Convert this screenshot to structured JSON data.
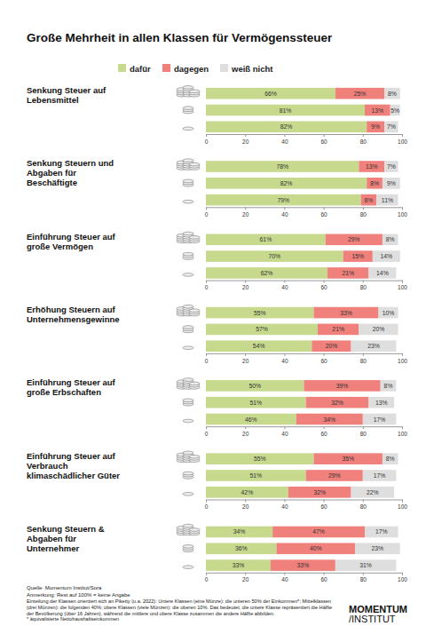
{
  "title": "Große Mehrheit in allen Klassen für Vermögenssteuer",
  "notes": [
    "Quelle: Momentum Institut/Sora",
    "Anmerkung: Rest auf 100% = keine Angabe",
    "Einteilung der Klassen orientiert sich an Piketty (u.a. 2022): Untere Klassen (eine Münze): die unteren 50% der Einkommen*; Mittelklassen (drei Münzen): die folgenden 40%; obere Klassen (viele Münzen): die oberen 10%. Das bedeutet, die untere Klasse repräsentiert die Hälfte der Bevölkerung (über 16 Jahren), während die mittlere und obere Klasse zusammen die andere Hälfte abbilden.",
    "* äquivalisierte Nettohaushaltseinkommen"
  ],
  "logo": [
    "MOMENTUM",
    "/INSTITUT"
  ],
  "chart_data": [
    {
      "type": "bar",
      "title": "Senkung Steuer auf Lebensmittel",
      "orientation": "horizontal",
      "stacked": true,
      "data_labels": true,
      "legend": "top",
      "categories": [
        null,
        null,
        null
      ],
      "xlim": [
        0,
        100
      ],
      "xticks": [
        0,
        20,
        40,
        60,
        80,
        100
      ],
      "series": [
        {
          "name": "dafür",
          "color": "#c6d98d",
          "values": [
            66,
            81,
            82
          ],
          "value_labels": [
            "66%",
            "81%",
            "82%"
          ]
        },
        {
          "name": "dagegen",
          "color": "#ef807b",
          "values": [
            25,
            13,
            9
          ],
          "value_labels": [
            "25%",
            "13%",
            "9%"
          ]
        },
        {
          "name": "weiß nicht",
          "color": "#dedede",
          "values": [
            8,
            5,
            7
          ],
          "value_labels": [
            "8%",
            "5%",
            "7%"
          ]
        }
      ]
    },
    {
      "type": "bar",
      "title": "Senkung Steuern und Abgaben für Beschäftigte",
      "orientation": "horizontal",
      "stacked": true,
      "data_labels": true,
      "categories": [
        null,
        null,
        null
      ],
      "xlim": [
        0,
        100
      ],
      "xticks": [
        0,
        20,
        40,
        60,
        80,
        100
      ],
      "series": [
        {
          "name": "dafür",
          "color": "#c6d98d",
          "values": [
            78,
            82,
            79
          ],
          "value_labels": [
            "78%",
            "82%",
            "79%"
          ]
        },
        {
          "name": "dagegen",
          "color": "#ef807b",
          "values": [
            13,
            8,
            8
          ],
          "value_labels": [
            "13%",
            "8%",
            "8%"
          ]
        },
        {
          "name": "weiß nicht",
          "color": "#dedede",
          "values": [
            7,
            9,
            11
          ],
          "value_labels": [
            "7%",
            "9%",
            "11%"
          ]
        }
      ]
    },
    {
      "type": "bar",
      "title": "Einführung Steuer auf große Vermögen",
      "orientation": "horizontal",
      "stacked": true,
      "data_labels": true,
      "categories": [
        null,
        null,
        null
      ],
      "xlim": [
        0,
        100
      ],
      "xticks": [
        0,
        20,
        40,
        60,
        80,
        100
      ],
      "series": [
        {
          "name": "dafür",
          "color": "#c6d98d",
          "values": [
            61,
            70,
            62
          ],
          "value_labels": [
            "61%",
            "70%",
            "62%"
          ]
        },
        {
          "name": "dagegen",
          "color": "#ef807b",
          "values": [
            29,
            15,
            21
          ],
          "value_labels": [
            "29%",
            "15%",
            "21%"
          ]
        },
        {
          "name": "weiß nicht",
          "color": "#dedede",
          "values": [
            8,
            14,
            14
          ],
          "value_labels": [
            "8%",
            "14%",
            "14%"
          ]
        }
      ]
    },
    {
      "type": "bar",
      "title": "Erhöhung Steuern auf Unternehmensgewinne",
      "orientation": "horizontal",
      "stacked": true,
      "data_labels": true,
      "categories": [
        null,
        null,
        null
      ],
      "xlim": [
        0,
        100
      ],
      "xticks": [
        0,
        20,
        40,
        60,
        80,
        100
      ],
      "series": [
        {
          "name": "dafür",
          "color": "#c6d98d",
          "values": [
            55,
            57,
            54
          ],
          "value_labels": [
            "55%",
            "57%",
            "54%"
          ]
        },
        {
          "name": "dagegen",
          "color": "#ef807b",
          "values": [
            33,
            21,
            20
          ],
          "value_labels": [
            "33%",
            "21%",
            "20%"
          ]
        },
        {
          "name": "weiß nicht",
          "color": "#dedede",
          "values": [
            10,
            20,
            23
          ],
          "value_labels": [
            "10%",
            "20%",
            "23%"
          ]
        }
      ]
    },
    {
      "type": "bar",
      "title": "Einführung Steuer auf große Erbschaften",
      "orientation": "horizontal",
      "stacked": true,
      "data_labels": true,
      "categories": [
        null,
        null,
        null
      ],
      "xlim": [
        0,
        100
      ],
      "xticks": [
        0,
        20,
        40,
        60,
        80,
        100
      ],
      "series": [
        {
          "name": "dafür",
          "color": "#c6d98d",
          "values": [
            50,
            51,
            46
          ],
          "value_labels": [
            "50%",
            "51%",
            "46%"
          ]
        },
        {
          "name": "dagegen",
          "color": "#ef807b",
          "values": [
            39,
            32,
            34
          ],
          "value_labels": [
            "39%",
            "32%",
            "34%"
          ]
        },
        {
          "name": "weiß nicht",
          "color": "#dedede",
          "values": [
            8,
            13,
            17
          ],
          "value_labels": [
            "8%",
            "13%",
            "17%"
          ]
        }
      ]
    },
    {
      "type": "bar",
      "title": "Einführung Steuer auf Verbrauch klimaschädlicher Güter",
      "orientation": "horizontal",
      "stacked": true,
      "data_labels": true,
      "categories": [
        null,
        null,
        null
      ],
      "xlim": [
        0,
        100
      ],
      "xticks": [
        0,
        20,
        40,
        60,
        80,
        100
      ],
      "series": [
        {
          "name": "dafür",
          "color": "#c6d98d",
          "values": [
            55,
            51,
            42
          ],
          "value_labels": [
            "55%",
            "51%",
            "42%"
          ]
        },
        {
          "name": "dagegen",
          "color": "#ef807b",
          "values": [
            35,
            29,
            32
          ],
          "value_labels": [
            "35%",
            "29%",
            "32%"
          ]
        },
        {
          "name": "weiß nicht",
          "color": "#dedede",
          "values": [
            8,
            17,
            22
          ],
          "value_labels": [
            "8%",
            "17%",
            "22%"
          ]
        }
      ]
    },
    {
      "type": "bar",
      "title": "Senkung Steuern & Abgaben für Unternehmer",
      "orientation": "horizontal",
      "stacked": true,
      "data_labels": true,
      "categories": [
        null,
        null,
        null
      ],
      "xlim": [
        0,
        100
      ],
      "xticks": [
        0,
        20,
        40,
        60,
        80,
        100
      ],
      "series": [
        {
          "name": "dafür",
          "color": "#c6d98d",
          "values": [
            34,
            36,
            33
          ],
          "value_labels": [
            "34%",
            "36%",
            "33%"
          ]
        },
        {
          "name": "dagegen",
          "color": "#ef807b",
          "values": [
            47,
            40,
            33
          ],
          "value_labels": [
            "47%",
            "40%",
            "33%"
          ]
        },
        {
          "name": "weiß nicht",
          "color": "#dedede",
          "values": [
            17,
            23,
            31
          ],
          "value_labels": [
            "17%",
            "23%",
            "31%"
          ]
        }
      ]
    }
  ]
}
